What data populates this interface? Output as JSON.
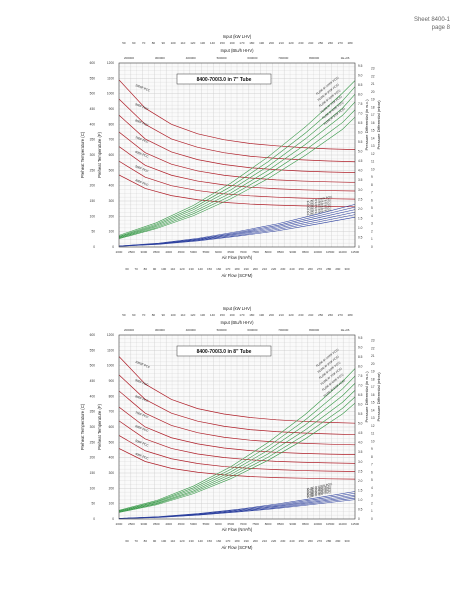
{
  "header": {
    "line1": "Sheet 8400-1",
    "line2": "page 8"
  },
  "colors": {
    "temperature_series": "#b0202a",
    "pressure_series_upper": "#3a9a4a",
    "pressure_series_lower": "#2b3f9e",
    "grid": "#c8c8c8",
    "frame": "#444444"
  },
  "chart_data": [
    {
      "type": "line",
      "title": "8400-700/3.0 in 7\" Tube",
      "top_axis_label_1": "Input (kW LHV)",
      "top_axis_ticks_1": [
        "50",
        "60",
        "70",
        "80",
        "90",
        "100",
        "110",
        "120",
        "130",
        "140",
        "150",
        "160",
        "170",
        "180",
        "190",
        "200",
        "210",
        "220",
        "230",
        "240",
        "250",
        "260",
        "270",
        "280"
      ],
      "top_axis_label_2": "Input (Btu/h HHV)",
      "top_axis_ticks_2": [
        "200000",
        "300000",
        "400000",
        "500000",
        "600000",
        "700000",
        "800000",
        "1E+06"
      ],
      "xlabel": "Air Flow (Nm³/h)",
      "x_ticks": [
        "2000",
        "2500",
        "3000",
        "3500",
        "4000",
        "4500",
        "5000",
        "5500",
        "6000",
        "6500",
        "7000",
        "7500",
        "8000",
        "8500",
        "9000",
        "9500",
        "10000",
        "10500",
        "11000",
        "11500"
      ],
      "xlim": [
        2000,
        11500
      ],
      "xlabel_2": "Air Flow (SCFM)",
      "x_ticks_2": [
        "60",
        "70",
        "80",
        "90",
        "100",
        "110",
        "120",
        "130",
        "140",
        "150",
        "160",
        "170",
        "180",
        "190",
        "200",
        "210",
        "220",
        "230",
        "240",
        "250",
        "260",
        "270",
        "280",
        "290",
        "300"
      ],
      "ylabel_left_outer": "Preheat Temperature (C)",
      "y_ticks_left_outer": [
        "0",
        "50",
        "100",
        "150",
        "200",
        "250",
        "300",
        "350",
        "400",
        "450",
        "500",
        "550",
        "600"
      ],
      "ylabel_left_inner": "Preheat Temperature (F)",
      "y_ticks_left_inner": [
        "0",
        "100",
        "200",
        "300",
        "400",
        "500",
        "600",
        "700",
        "800",
        "900",
        "1000",
        "1100",
        "1200"
      ],
      "ylim": [
        0,
        1200
      ],
      "ylabel_right_inner": "Pressure Differential (in w.c.)",
      "y_ticks_right_inner": [
        "0",
        "0.5",
        "1.0",
        "1.5",
        "2.0",
        "2.5",
        "3.0",
        "3.5",
        "4.0",
        "4.5",
        "5.0",
        "5.5",
        "6.0",
        "6.5",
        "7.0",
        "7.5",
        "8.0",
        "8.5",
        "9.0",
        "9.5"
      ],
      "ylabel_right_outer": "Pressure Differential (mbar)",
      "y_ticks_right_outer": [
        "0",
        "1",
        "2",
        "3",
        "4",
        "5",
        "6",
        "7",
        "8",
        "9",
        "10",
        "11",
        "12",
        "13",
        "14",
        "15",
        "16",
        "17",
        "18",
        "19",
        "20",
        "21",
        "22",
        "23"
      ],
      "temperature_series": [
        {
          "name": "1000F PCC",
          "values": [
            1090,
            905,
            800,
            738,
            700,
            675,
            660,
            648,
            640,
            635
          ]
        },
        {
          "name": "900F PCC",
          "values": [
            965,
            800,
            705,
            650,
            615,
            592,
            578,
            568,
            561,
            556
          ]
        },
        {
          "name": "800F PCC",
          "values": [
            860,
            705,
            620,
            570,
            538,
            517,
            504,
            495,
            489,
            485
          ]
        },
        {
          "name": "700F PCC",
          "values": [
            750,
            615,
            540,
            496,
            468,
            450,
            438,
            430,
            425,
            421
          ]
        },
        {
          "name": "600F PCC",
          "values": [
            655,
            533,
            468,
            430,
            405,
            390,
            380,
            373,
            368,
            365
          ]
        },
        {
          "name": "500F PCC",
          "values": [
            560,
            455,
            400,
            368,
            347,
            334,
            325,
            319,
            315,
            312
          ]
        },
        {
          "name": "400F PCC",
          "values": [
            470,
            382,
            335,
            308,
            291,
            280,
            273,
            268,
            265,
            262
          ]
        }
      ],
      "pressure_series": [
        {
          "name": "1000F PCC",
          "values": [
            0.6,
            1.25,
            2.15,
            3.3,
            4.65,
            6.2,
            7.95,
            9.5
          ]
        },
        {
          "name": "900F PCC",
          "values": [
            0.55,
            1.18,
            2.03,
            3.12,
            4.4,
            5.88,
            7.55,
            9.3
          ]
        },
        {
          "name": "800F PCC",
          "values": [
            0.52,
            1.12,
            1.93,
            2.95,
            4.17,
            5.58,
            7.17,
            8.9
          ]
        },
        {
          "name": "700F PCC",
          "values": [
            0.49,
            1.06,
            1.82,
            2.79,
            3.95,
            5.29,
            6.8,
            8.45
          ]
        },
        {
          "name": "600F PCC",
          "values": [
            0.46,
            1.0,
            1.72,
            2.64,
            3.74,
            5.0,
            6.43,
            8.0
          ]
        },
        {
          "name": "500F PCC",
          "values": [
            0.43,
            0.95,
            1.62,
            2.49,
            3.53,
            4.73,
            6.08,
            7.58
          ]
        }
      ],
      "pressure_x": [
        2000,
        3500,
        5000,
        6500,
        8000,
        9500,
        11000,
        12200
      ],
      "lower_pressure_series": [
        {
          "name": "PL(SE-IP 1000F PCC)",
          "values": [
            0.05,
            0.2,
            0.45,
            0.8,
            1.2,
            1.7,
            2.2
          ]
        },
        {
          "name": "PL(SE-IP 900F PCC)",
          "values": [
            0.05,
            0.18,
            0.42,
            0.75,
            1.12,
            1.6,
            2.06
          ]
        },
        {
          "name": "PL(SE-IP 800F PCC)",
          "values": [
            0.05,
            0.17,
            0.4,
            0.7,
            1.05,
            1.5,
            1.93
          ]
        },
        {
          "name": "PL(SE-IP 700F PCC)",
          "values": [
            0.04,
            0.16,
            0.37,
            0.65,
            0.98,
            1.39,
            1.8
          ]
        },
        {
          "name": "PL(SE-IP 600F PCC)",
          "values": [
            0.04,
            0.15,
            0.35,
            0.6,
            0.91,
            1.29,
            1.67
          ]
        },
        {
          "name": "PL(SE-IP 500F PCC)",
          "values": [
            0.04,
            0.14,
            0.32,
            0.56,
            0.84,
            1.19,
            1.54
          ]
        }
      ],
      "lower_x": [
        2000,
        3600,
        5200,
        6800,
        8400,
        10000,
        11500
      ],
      "grid": true
    },
    {
      "type": "line",
      "title": "8400-700/3.0 in 8\" Tube",
      "top_axis_label_1": "Input (kW LHV)",
      "top_axis_ticks_1": [
        "50",
        "60",
        "70",
        "80",
        "90",
        "100",
        "110",
        "120",
        "130",
        "140",
        "150",
        "160",
        "170",
        "180",
        "190",
        "200",
        "210",
        "220",
        "230",
        "240",
        "250",
        "260",
        "270",
        "280"
      ],
      "top_axis_label_2": "Input (Btu/h HHV)",
      "top_axis_ticks_2": [
        "200000",
        "300000",
        "400000",
        "500000",
        "600000",
        "700000",
        "800000",
        "1E+06"
      ],
      "xlabel": "Air Flow (Nm³/h)",
      "x_ticks": [
        "2000",
        "2500",
        "3000",
        "3500",
        "4000",
        "4500",
        "5000",
        "5500",
        "6000",
        "6500",
        "7000",
        "7500",
        "8000",
        "8500",
        "9000",
        "9500",
        "10000",
        "10500",
        "11000",
        "11500"
      ],
      "xlim": [
        2000,
        11500
      ],
      "xlabel_2": "Air Flow (SCFM)",
      "x_ticks_2": [
        "60",
        "70",
        "80",
        "90",
        "100",
        "110",
        "120",
        "130",
        "140",
        "150",
        "160",
        "170",
        "180",
        "190",
        "200",
        "210",
        "220",
        "230",
        "240",
        "250",
        "260",
        "270",
        "280",
        "290",
        "300"
      ],
      "ylabel_left_outer": "Preheat Temperature (C)",
      "y_ticks_left_outer": [
        "0",
        "50",
        "100",
        "150",
        "200",
        "250",
        "300",
        "350",
        "400",
        "450",
        "500",
        "550",
        "600"
      ],
      "ylabel_left_inner": "Preheat Temperature (F)",
      "y_ticks_left_inner": [
        "0",
        "100",
        "200",
        "300",
        "400",
        "500",
        "600",
        "700",
        "800",
        "900",
        "1000",
        "1100",
        "1200"
      ],
      "ylim": [
        0,
        1200
      ],
      "ylabel_right_inner": "Pressure Differential (in w.c.)",
      "y_ticks_right_inner": [
        "0",
        "0.5",
        "1.0",
        "1.5",
        "2.0",
        "2.5",
        "3.0",
        "3.5",
        "4.0",
        "4.5",
        "5.0",
        "5.5",
        "6.0",
        "6.5",
        "7.0",
        "7.5",
        "8.0",
        "8.5",
        "9.0",
        "9.5"
      ],
      "ylabel_right_outer": "Pressure Differential (mbar)",
      "y_ticks_right_outer": [
        "0",
        "1",
        "2",
        "3",
        "4",
        "5",
        "6",
        "7",
        "8",
        "9",
        "10",
        "11",
        "12",
        "13",
        "14",
        "15",
        "16",
        "17",
        "18",
        "19",
        "20",
        "21",
        "22",
        "23"
      ],
      "temperature_series": [
        {
          "name": "1000F PCC",
          "values": [
            1060,
            880,
            780,
            720,
            685,
            662,
            647,
            637,
            630,
            625
          ]
        },
        {
          "name": "900F PCC",
          "values": [
            940,
            780,
            690,
            638,
            605,
            583,
            570,
            561,
            555,
            550
          ]
        },
        {
          "name": "800F PCC",
          "values": [
            835,
            690,
            610,
            563,
            533,
            514,
            502,
            494,
            488,
            484
          ]
        },
        {
          "name": "700F PCC",
          "values": [
            730,
            600,
            530,
            490,
            463,
            446,
            435,
            428,
            423,
            420
          ]
        },
        {
          "name": "600F PCC",
          "values": [
            640,
            522,
            460,
            424,
            401,
            386,
            376,
            370,
            366,
            363
          ]
        },
        {
          "name": "500F PCC",
          "values": [
            545,
            445,
            393,
            362,
            342,
            330,
            322,
            316,
            312,
            310
          ]
        },
        {
          "name": "400F PCC",
          "values": [
            460,
            375,
            330,
            305,
            288,
            277,
            270,
            266,
            262,
            260
          ]
        }
      ],
      "pressure_series": [
        {
          "name": "1000F PCC",
          "values": [
            0.45,
            0.95,
            1.7,
            2.7,
            3.95,
            5.4,
            7.1,
            8.7
          ]
        },
        {
          "name": "900F PCC",
          "values": [
            0.42,
            0.9,
            1.61,
            2.56,
            3.74,
            5.12,
            6.72,
            8.3
          ]
        },
        {
          "name": "800F PCC",
          "values": [
            0.4,
            0.86,
            1.53,
            2.43,
            3.55,
            4.86,
            6.37,
            7.9
          ]
        },
        {
          "name": "700F PCC",
          "values": [
            0.38,
            0.81,
            1.45,
            2.31,
            3.36,
            4.6,
            6.03,
            7.5
          ]
        },
        {
          "name": "600F PCC",
          "values": [
            0.36,
            0.77,
            1.38,
            2.19,
            3.19,
            4.36,
            5.72,
            7.12
          ]
        },
        {
          "name": "500F PCC",
          "values": [
            0.34,
            0.73,
            1.31,
            2.08,
            3.03,
            4.14,
            5.43,
            6.76
          ]
        }
      ],
      "pressure_x": [
        2000,
        3500,
        5000,
        6500,
        8000,
        9500,
        11000,
        12200
      ],
      "lower_pressure_series": [
        {
          "name": "PL(SE-IP 1000F PCC)",
          "values": [
            0.03,
            0.12,
            0.28,
            0.5,
            0.78,
            1.1,
            1.42
          ]
        },
        {
          "name": "PL(SE-IP 900F PCC)",
          "values": [
            0.03,
            0.11,
            0.26,
            0.47,
            0.73,
            1.03,
            1.33
          ]
        },
        {
          "name": "PL(SE-IP 800F PCC)",
          "values": [
            0.03,
            0.1,
            0.24,
            0.44,
            0.68,
            0.96,
            1.24
          ]
        },
        {
          "name": "PL(SE-IP 700F PCC)",
          "values": [
            0.03,
            0.1,
            0.23,
            0.41,
            0.64,
            0.9,
            1.16
          ]
        },
        {
          "name": "PL(SE-IP 600F PCC)",
          "values": [
            0.02,
            0.09,
            0.21,
            0.38,
            0.59,
            0.84,
            1.08
          ]
        },
        {
          "name": "PL(SE-IP 500F PCC)",
          "values": [
            0.02,
            0.08,
            0.2,
            0.36,
            0.55,
            0.78,
            1.0
          ]
        }
      ],
      "lower_x": [
        2000,
        3600,
        5200,
        6800,
        8400,
        10000,
        11500
      ],
      "grid": true
    }
  ]
}
